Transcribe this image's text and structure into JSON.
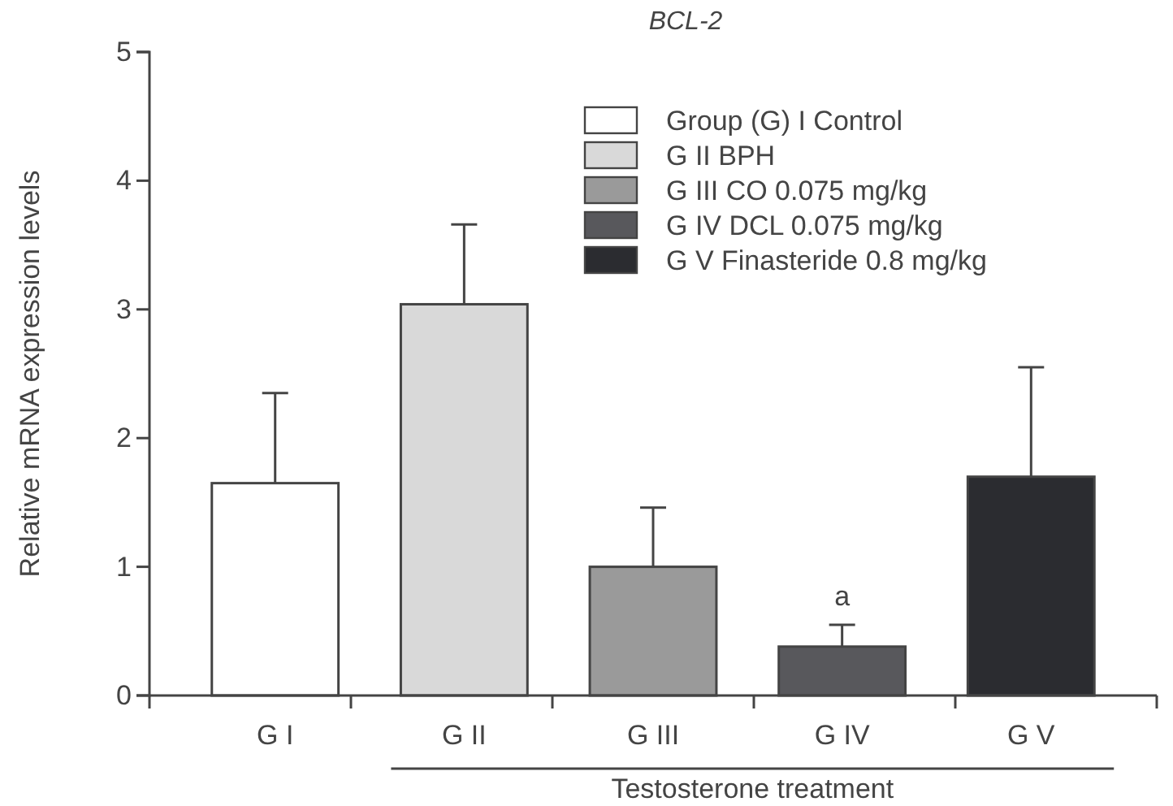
{
  "chart_data": {
    "type": "bar",
    "title": "BCL-2",
    "ylabel": "Relative mRNA expression levels",
    "categories": [
      "G I",
      "G II",
      "G III",
      "G IV",
      "G V"
    ],
    "stacked": true,
    "series": [
      {
        "name": "Group (G) I Control",
        "color": "#ffffff",
        "values": [
          1.65,
          null,
          null,
          null,
          null
        ],
        "errors": [
          0.7,
          null,
          null,
          null,
          null
        ]
      },
      {
        "name": "G II BPH",
        "color": "#d9d9d9",
        "values": [
          null,
          3.04,
          null,
          null,
          null
        ],
        "errors": [
          null,
          0.62,
          null,
          null,
          null
        ]
      },
      {
        "name": "G III CO 0.075 mg/kg",
        "color": "#9a9a9a",
        "values": [
          null,
          null,
          1.0,
          null,
          null
        ],
        "errors": [
          null,
          null,
          0.46,
          null,
          null
        ]
      },
      {
        "name": "G IV DCL 0.075 mg/kg",
        "color": "#58585c",
        "values": [
          null,
          null,
          null,
          0.38,
          null
        ],
        "errors": [
          null,
          null,
          null,
          0.17,
          null
        ]
      },
      {
        "name": "G V Finasteride 0.8 mg/kg",
        "color": "#2b2c30",
        "values": [
          null,
          null,
          null,
          null,
          1.7
        ],
        "errors": [
          null,
          null,
          null,
          null,
          0.85
        ]
      }
    ],
    "ylim": [
      0,
      5
    ],
    "yticks": [
      0,
      1,
      2,
      3,
      4,
      5
    ],
    "grid": false,
    "legend": "top right",
    "annotations": [
      {
        "text": "a",
        "x": "G IV",
        "y": 0.55
      },
      "Testosterone treatment"
    ]
  }
}
